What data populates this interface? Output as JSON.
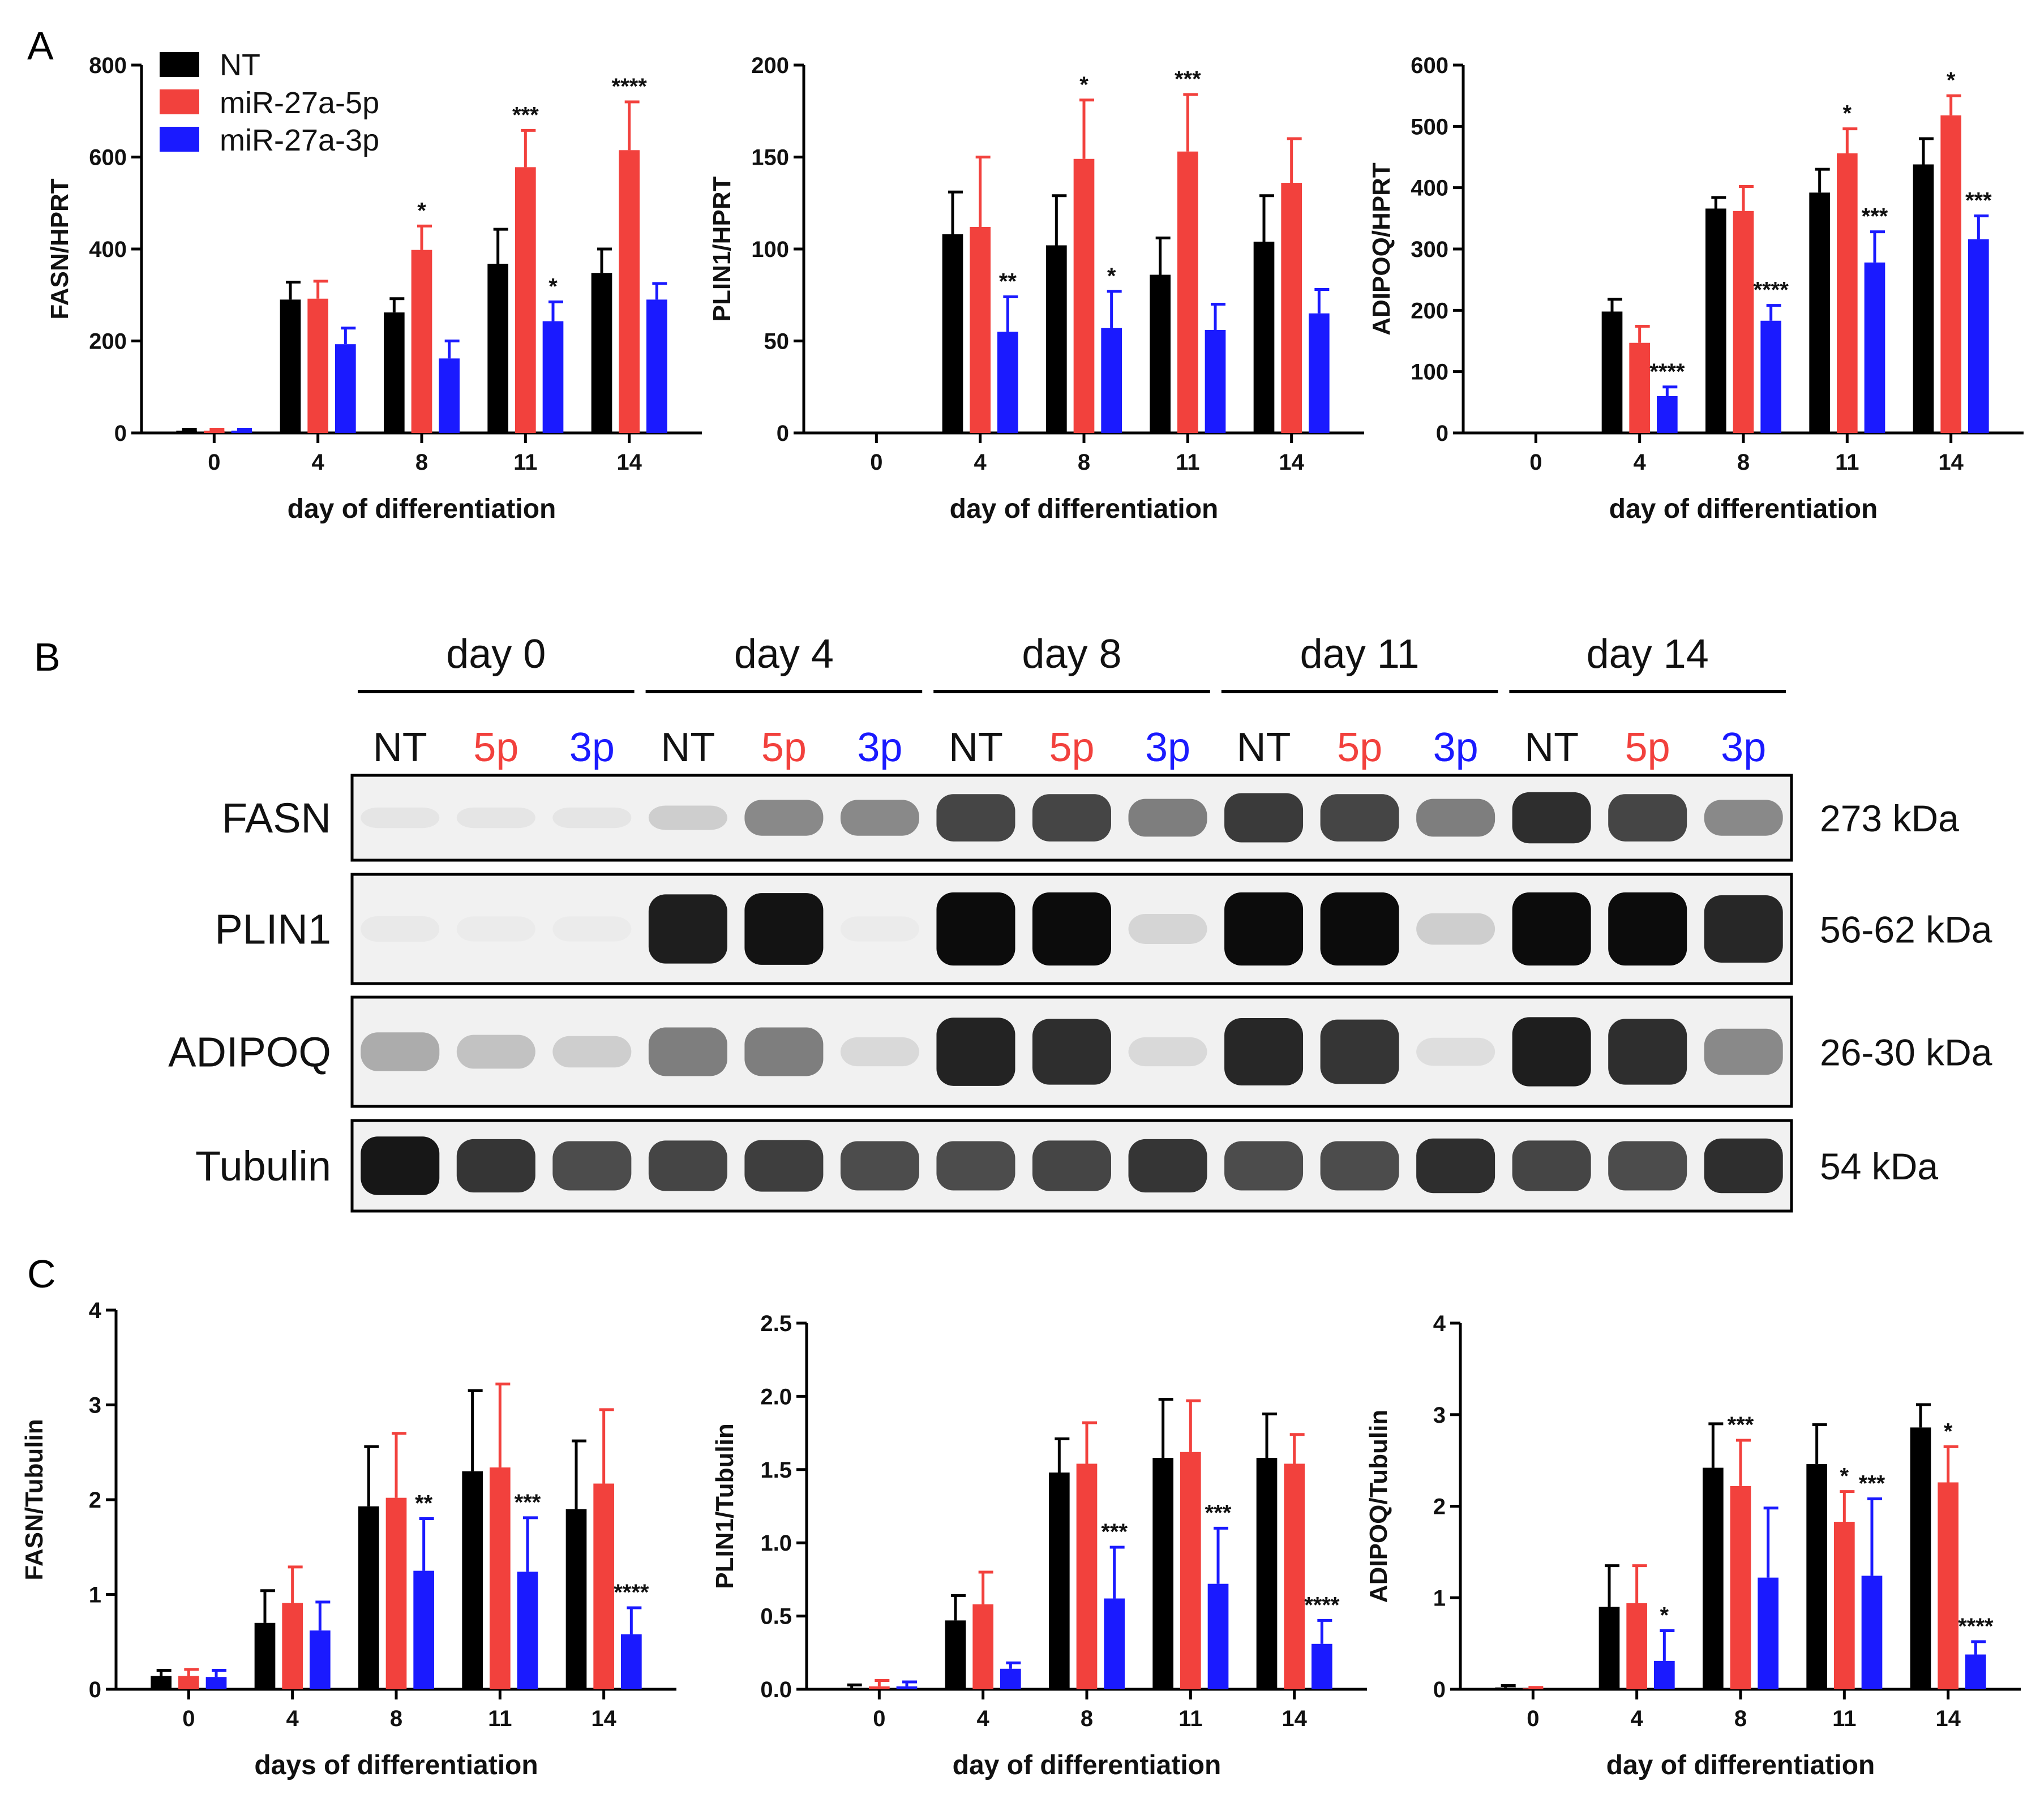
{
  "colors": {
    "NT": "#000000",
    "5p": "#f2413d",
    "3p": "#1a1aff",
    "axis": "#000000",
    "blot_bg": "#f1f1f1"
  },
  "panels": {
    "A": "A",
    "B": "B",
    "C": "C"
  },
  "legend": {
    "entries": [
      "NT",
      "miR-27a-5p",
      "miR-27a-3p"
    ]
  },
  "chart_data": [
    {
      "id": "A1",
      "type": "bar",
      "panel": "A",
      "categories": [
        "0",
        "4",
        "8",
        "11",
        "14"
      ],
      "xlabel": "day of differentiation",
      "ylabel": "FASN/HPRT",
      "ylim": [
        0,
        800
      ],
      "yticks": [
        "0",
        "200",
        "400",
        "600",
        "800"
      ],
      "series": [
        {
          "name": "NT",
          "values": [
            5,
            290,
            262,
            368,
            348
          ],
          "errors": [
            3,
            38,
            30,
            75,
            52
          ],
          "sig": [
            "",
            "",
            "",
            "",
            ""
          ]
        },
        {
          "name": "miR-27a-5p",
          "values": [
            5,
            292,
            398,
            578,
            615
          ],
          "errors": [
            3,
            38,
            52,
            80,
            105
          ],
          "sig": [
            "",
            "",
            "*",
            "***",
            "****"
          ]
        },
        {
          "name": "miR-27a-3p",
          "values": [
            5,
            193,
            162,
            243,
            290
          ],
          "errors": [
            3,
            35,
            38,
            42,
            35
          ],
          "sig": [
            "",
            "",
            "",
            "*",
            ""
          ]
        }
      ]
    },
    {
      "id": "A2",
      "type": "bar",
      "panel": "A",
      "categories": [
        "0",
        "4",
        "8",
        "11",
        "14"
      ],
      "xlabel": "day of differentiation",
      "ylabel": "PLIN1/HPRT",
      "ylim": [
        0,
        200
      ],
      "yticks": [
        "0",
        "50",
        "100",
        "150",
        "200"
      ],
      "series": [
        {
          "name": "NT",
          "values": [
            0,
            108,
            102,
            86,
            104
          ],
          "errors": [
            0,
            23,
            27,
            20,
            25
          ],
          "sig": [
            "",
            "",
            "",
            "",
            ""
          ]
        },
        {
          "name": "miR-27a-5p",
          "values": [
            0,
            112,
            149,
            153,
            136
          ],
          "errors": [
            0,
            38,
            32,
            31,
            24
          ],
          "sig": [
            "",
            "",
            "*",
            "***",
            ""
          ]
        },
        {
          "name": "miR-27a-3p",
          "values": [
            0,
            55,
            57,
            56,
            65
          ],
          "errors": [
            0,
            19,
            20,
            14,
            13
          ],
          "sig": [
            "",
            "**",
            "*",
            "",
            ""
          ]
        }
      ]
    },
    {
      "id": "A3",
      "type": "bar",
      "panel": "A",
      "categories": [
        "0",
        "4",
        "8",
        "11",
        "14"
      ],
      "xlabel": "day of differentiation",
      "ylabel": "ADIPOQ/HPRT",
      "ylim": [
        0,
        600
      ],
      "yticks": [
        "0",
        "100",
        "200",
        "300",
        "400",
        "500",
        "600"
      ],
      "series": [
        {
          "name": "NT",
          "values": [
            0,
            198,
            366,
            392,
            438
          ],
          "errors": [
            0,
            20,
            18,
            38,
            42
          ],
          "sig": [
            "",
            "",
            "",
            "",
            ""
          ]
        },
        {
          "name": "miR-27a-5p",
          "values": [
            0,
            147,
            362,
            456,
            518
          ],
          "errors": [
            0,
            27,
            40,
            40,
            32
          ],
          "sig": [
            "",
            "",
            "",
            "*",
            "*"
          ]
        },
        {
          "name": "miR-27a-3p",
          "values": [
            0,
            60,
            183,
            278,
            316
          ],
          "errors": [
            0,
            15,
            25,
            50,
            38
          ],
          "sig": [
            "",
            "****",
            "****",
            "***",
            "***"
          ]
        }
      ]
    },
    {
      "id": "C1",
      "type": "bar",
      "panel": "C",
      "categories": [
        "0",
        "4",
        "8",
        "11",
        "14"
      ],
      "xlabel": "days of differentiation",
      "ylabel": "FASN/Tubulin",
      "ylim": [
        0,
        4
      ],
      "yticks": [
        "0",
        "1",
        "2",
        "3",
        "4"
      ],
      "series": [
        {
          "name": "NT",
          "values": [
            0.14,
            0.7,
            1.93,
            2.3,
            1.9
          ],
          "errors": [
            0.06,
            0.34,
            0.63,
            0.85,
            0.72
          ],
          "sig": [
            "",
            "",
            "",
            "",
            ""
          ]
        },
        {
          "name": "miR-27a-5p",
          "values": [
            0.14,
            0.91,
            2.02,
            2.34,
            2.17
          ],
          "errors": [
            0.07,
            0.38,
            0.68,
            0.88,
            0.78
          ],
          "sig": [
            "",
            "",
            "",
            "",
            ""
          ]
        },
        {
          "name": "miR-27a-3p",
          "values": [
            0.13,
            0.62,
            1.25,
            1.24,
            0.58
          ],
          "errors": [
            0.07,
            0.3,
            0.55,
            0.57,
            0.28
          ],
          "sig": [
            "",
            "",
            "**",
            "***",
            "****"
          ]
        }
      ]
    },
    {
      "id": "C2",
      "type": "bar",
      "panel": "C",
      "categories": [
        "0",
        "4",
        "8",
        "11",
        "14"
      ],
      "xlabel": "day of differentiation",
      "ylabel": "PLIN1/Tubulin",
      "ylim": [
        0,
        2.5
      ],
      "yticks": [
        "0.0",
        "0.5",
        "1.0",
        "1.5",
        "2.0",
        "2.5"
      ],
      "series": [
        {
          "name": "NT",
          "values": [
            0.01,
            0.47,
            1.48,
            1.58,
            1.58
          ],
          "errors": [
            0.02,
            0.17,
            0.23,
            0.4,
            0.3
          ],
          "sig": [
            "",
            "",
            "",
            "",
            ""
          ]
        },
        {
          "name": "miR-27a-5p",
          "values": [
            0.02,
            0.58,
            1.54,
            1.62,
            1.54
          ],
          "errors": [
            0.04,
            0.22,
            0.28,
            0.35,
            0.2
          ],
          "sig": [
            "",
            "",
            "",
            "",
            ""
          ]
        },
        {
          "name": "miR-27a-3p",
          "values": [
            0.02,
            0.14,
            0.62,
            0.72,
            0.31
          ],
          "errors": [
            0.03,
            0.04,
            0.35,
            0.38,
            0.16
          ],
          "sig": [
            "",
            "",
            "***",
            "***",
            "****"
          ]
        }
      ]
    },
    {
      "id": "C3",
      "type": "bar",
      "panel": "C",
      "categories": [
        "0",
        "4",
        "8",
        "11",
        "14"
      ],
      "xlabel": "day of differentiation",
      "ylabel": "ADIPOQ/Tubulin",
      "ylim": [
        0,
        4
      ],
      "yticks": [
        "0",
        "1",
        "2",
        "3",
        "4"
      ],
      "series": [
        {
          "name": "NT",
          "values": [
            0.02,
            0.9,
            2.42,
            2.46,
            2.86
          ],
          "errors": [
            0.02,
            0.45,
            0.48,
            0.43,
            0.25
          ],
          "sig": [
            "",
            "",
            "",
            "",
            ""
          ]
        },
        {
          "name": "miR-27a-5p",
          "values": [
            0.01,
            0.94,
            2.22,
            1.83,
            2.26
          ],
          "errors": [
            0.01,
            0.41,
            0.5,
            0.33,
            0.39
          ],
          "sig": [
            "",
            "",
            "***",
            "*",
            "*"
          ]
        },
        {
          "name": "miR-27a-3p",
          "values": [
            0.0,
            0.31,
            1.22,
            1.24,
            0.38
          ],
          "errors": [
            0.0,
            0.33,
            0.76,
            0.84,
            0.14
          ],
          "sig": [
            "",
            "*",
            "",
            "***",
            "****"
          ]
        }
      ]
    }
  ],
  "western_blot": {
    "days": [
      "day 0",
      "day 4",
      "day 8",
      "day 11",
      "day 14"
    ],
    "lanes": [
      "NT",
      "5p",
      "3p"
    ],
    "rows": [
      {
        "protein": "FASN",
        "kda": "273 kDa",
        "intensity": [
          0.05,
          0.05,
          0.05,
          0.15,
          0.45,
          0.45,
          0.75,
          0.75,
          0.5,
          0.8,
          0.75,
          0.5,
          0.85,
          0.75,
          0.45
        ]
      },
      {
        "protein": "PLIN1",
        "kda": "56-62 kDa",
        "intensity": [
          0.03,
          0.02,
          0.02,
          0.92,
          0.97,
          0.02,
          1.0,
          1.0,
          0.12,
          1.0,
          1.0,
          0.15,
          1.0,
          1.0,
          0.88
        ]
      },
      {
        "protein": "ADIPOQ",
        "kda": "26-30 kDa",
        "intensity": [
          0.3,
          0.2,
          0.15,
          0.5,
          0.5,
          0.1,
          0.9,
          0.85,
          0.1,
          0.88,
          0.82,
          0.08,
          0.92,
          0.85,
          0.45
        ]
      },
      {
        "protein": "Tubulin",
        "kda": "54 kDa",
        "intensity": [
          0.95,
          0.82,
          0.72,
          0.75,
          0.78,
          0.72,
          0.72,
          0.75,
          0.82,
          0.72,
          0.72,
          0.85,
          0.75,
          0.72,
          0.85
        ]
      }
    ]
  }
}
